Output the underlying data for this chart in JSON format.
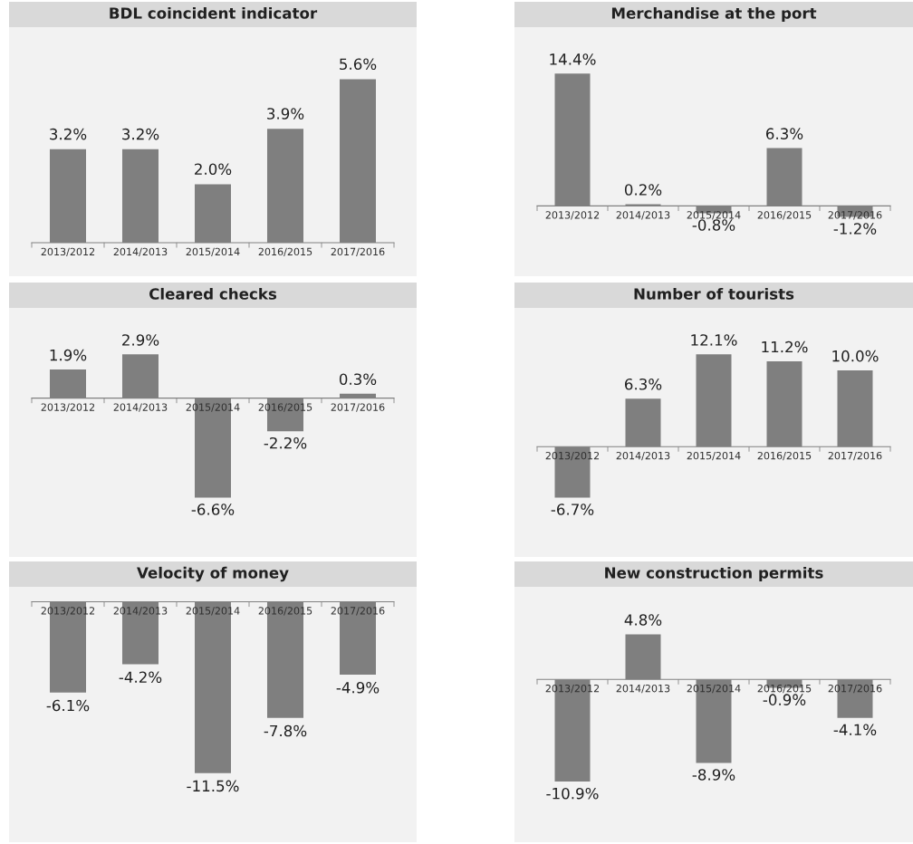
{
  "chart_data": [
    {
      "type": "bar",
      "title": "BDL coincident indicator",
      "categories": [
        "2013/2012",
        "2014/2013",
        "2015/2014",
        "2016/2015",
        "2017/2016"
      ],
      "values": [
        3.2,
        3.2,
        2.0,
        3.9,
        5.6
      ],
      "color": "#7f7f7f",
      "value_labels": [
        "3.2%",
        "3.2%",
        "2.0%",
        "3.9%",
        "5.6%"
      ]
    },
    {
      "type": "bar",
      "title": "Merchandise at the port",
      "categories": [
        "2013/2012",
        "2014/2013",
        "2015/2014",
        "2016/2015",
        "2017/2016"
      ],
      "values": [
        14.4,
        0.2,
        -0.8,
        6.3,
        -1.2
      ],
      "color": "#7f7f7f",
      "value_labels": [
        "14.4%",
        "0.2%",
        "-0.8%",
        "6.3%",
        "-1.2%"
      ]
    },
    {
      "type": "bar",
      "title": "Cleared checks",
      "categories": [
        "2013/2012",
        "2014/2013",
        "2015/2014",
        "2016/2015",
        "2017/2016"
      ],
      "values": [
        1.9,
        2.9,
        -6.6,
        -2.2,
        0.3
      ],
      "color": "#7f7f7f",
      "value_labels": [
        "1.9%",
        "2.9%",
        "-6.6%",
        "-2.2%",
        "0.3%"
      ]
    },
    {
      "type": "bar",
      "title": "Number of tourists",
      "categories": [
        "2013/2012",
        "2014/2013",
        "2015/2014",
        "2016/2015",
        "2017/2016"
      ],
      "values": [
        -6.7,
        6.3,
        12.1,
        11.2,
        10.0
      ],
      "color": "#7f7f7f",
      "value_labels": [
        "-6.7%",
        "6.3%",
        "12.1%",
        "11.2%",
        "10.0%"
      ]
    },
    {
      "type": "bar",
      "title": "Velocity of money",
      "categories": [
        "2013/2012",
        "2014/2013",
        "2015/2014",
        "2016/2015",
        "2017/2016"
      ],
      "values": [
        -6.1,
        -4.2,
        -11.5,
        -7.8,
        -4.9
      ],
      "color": "#7f7f7f",
      "value_labels": [
        "-6.1%",
        "-4.2%",
        "-11.5%",
        "-7.8%",
        "-4.9%"
      ]
    },
    {
      "type": "bar",
      "title": "New construction permits",
      "categories": [
        "2013/2012",
        "2014/2013",
        "2015/2014",
        "2016/2015",
        "2017/2016"
      ],
      "values": [
        -10.9,
        4.8,
        -8.9,
        -0.9,
        -4.1
      ],
      "color": "#7f7f7f",
      "value_labels": [
        "-10.9%",
        "4.8%",
        "-8.9%",
        "-0.9%",
        "-4.1%"
      ]
    }
  ]
}
